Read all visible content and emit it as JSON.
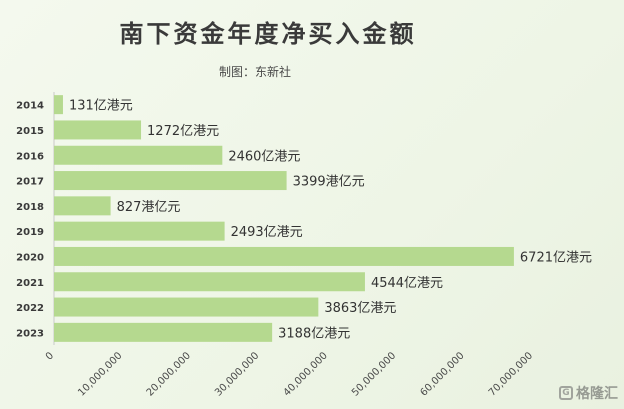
{
  "chart_data": {
    "type": "bar",
    "orientation": "horizontal",
    "title": "南下资金年度净买入金额",
    "subtitle": "制图：东新社",
    "categories": [
      "2014",
      "2015",
      "2016",
      "2017",
      "2018",
      "2019",
      "2020",
      "2021",
      "2022",
      "2023"
    ],
    "values": [
      1310000,
      12720000,
      24600000,
      33990000,
      8270000,
      24930000,
      67210000,
      45440000,
      38630000,
      31880000
    ],
    "data_labels": [
      "131亿港元",
      "1272亿港元",
      "2460亿港元",
      "3399港亿元",
      "827港亿元",
      "2493亿港元",
      "6721亿港元",
      "4544亿港元",
      "3863亿港元",
      "3188亿港元"
    ],
    "x_ticks": [
      "0",
      "10,000,000",
      "20,000,000",
      "30,000,000",
      "40,000,000",
      "50,000,000",
      "60,000,000",
      "70,000,000"
    ],
    "xlim": [
      0,
      70000000
    ],
    "grid": false,
    "bar_color": "#b5d98f",
    "background_color": "#f1f7ea"
  },
  "watermark": {
    "icon": "G",
    "text": "格隆汇"
  }
}
